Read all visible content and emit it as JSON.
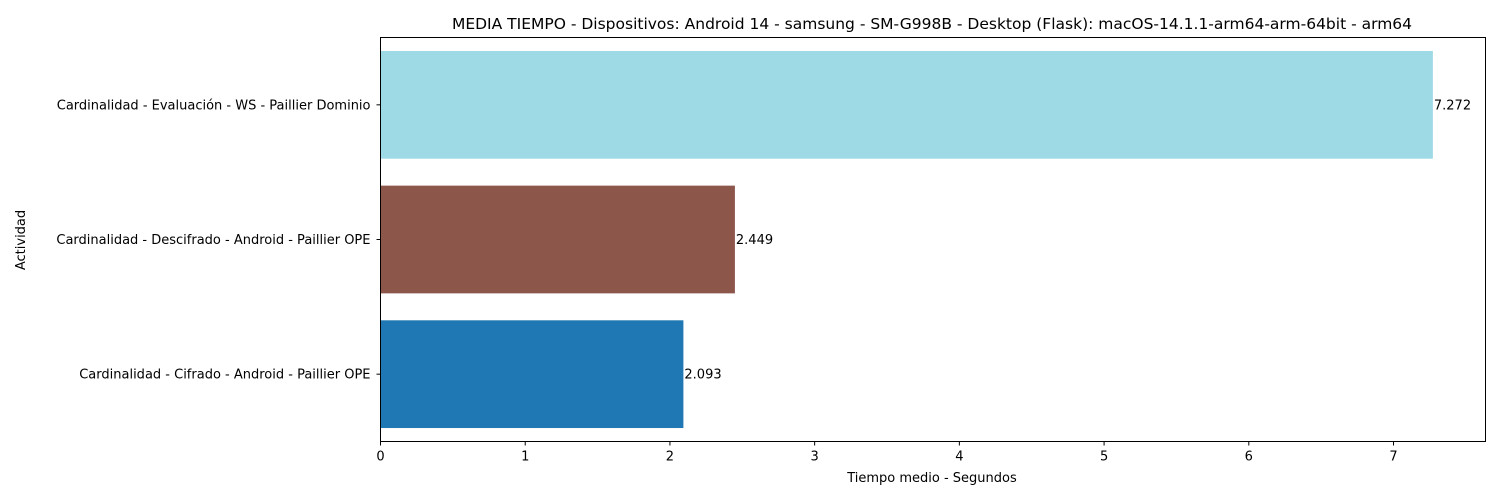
{
  "chart_data": {
    "type": "bar",
    "orientation": "horizontal",
    "title": "MEDIA TIEMPO - Dispositivos: Android 14 - samsung - SM-G998B - Desktop (Flask): macOS-14.1.1-arm64-arm-64bit - arm64",
    "xlabel": "Tiempo medio - Segundos",
    "ylabel": "Actividad",
    "categories": [
      "Cardinalidad - Cifrado - Android - Paillier OPE",
      "Cardinalidad - Descifrado - Android - Paillier OPE",
      "Cardinalidad - Evaluación - WS - Paillier Dominio"
    ],
    "values": [
      2.093,
      2.449,
      7.272
    ],
    "value_labels": [
      "2.093",
      "2.449",
      "7.272"
    ],
    "colors": [
      "#1f77b4",
      "#8c564b",
      "#9edae5"
    ],
    "xlim": [
      0,
      7.6356
    ],
    "xticks": [
      0,
      1,
      2,
      3,
      4,
      5,
      6,
      7
    ],
    "grid": false,
    "legend": "none"
  }
}
